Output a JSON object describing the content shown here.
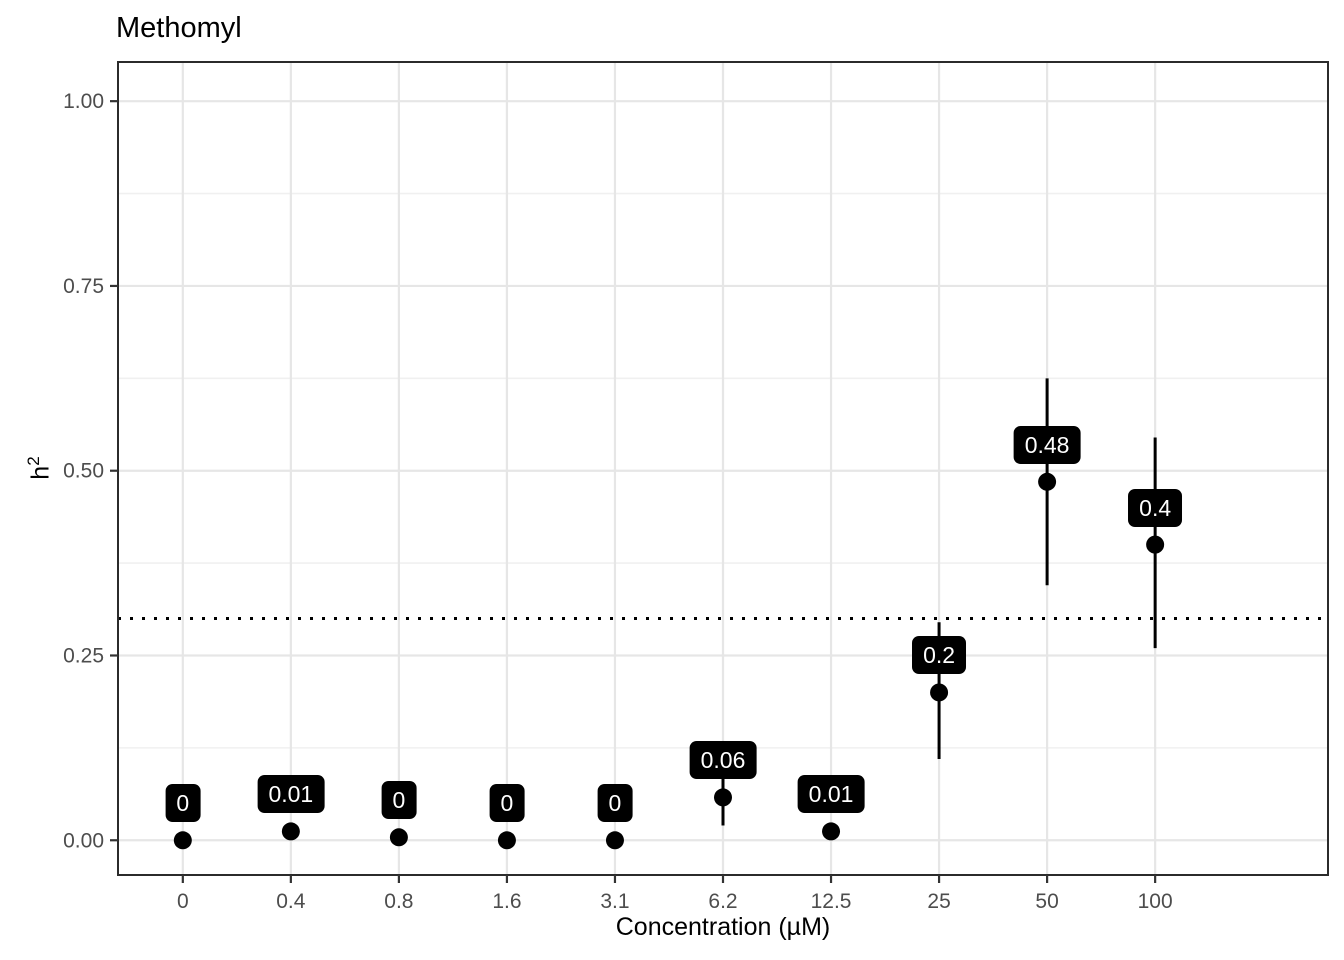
{
  "title": "Methomyl",
  "chart_data": {
    "type": "scatter",
    "title": "Methomyl",
    "xlabel": "Concentration (µM)",
    "ylabel": "h²",
    "ylabel_base": "h",
    "ylabel_exponent": "2",
    "x_categories": [
      "0",
      "0.4",
      "0.8",
      "1.6",
      "3.1",
      "6.2",
      "12.5",
      "25",
      "50",
      "100"
    ],
    "y_tick_labels": [
      "0.00",
      "0.25",
      "0.50",
      "0.75",
      "1.00"
    ],
    "y_tick_values": [
      0,
      0.25,
      0.5,
      0.75,
      1.0
    ],
    "y_minor_tick_values": [
      0.125,
      0.375,
      0.625,
      0.875
    ],
    "ylim": [
      -0.047,
      1.053
    ],
    "grid": "on",
    "legend": "none",
    "points": [
      {
        "x": "0",
        "y": 0.0,
        "label": "0",
        "ymin": null,
        "ymax": null
      },
      {
        "x": "0.4",
        "y": 0.012,
        "label": "0.01",
        "ymin": null,
        "ymax": null
      },
      {
        "x": "0.8",
        "y": 0.004,
        "label": "0",
        "ymin": null,
        "ymax": null
      },
      {
        "x": "1.6",
        "y": 0.0,
        "label": "0",
        "ymin": null,
        "ymax": null
      },
      {
        "x": "3.1",
        "y": 0.0,
        "label": "0",
        "ymin": null,
        "ymax": null
      },
      {
        "x": "6.2",
        "y": 0.058,
        "label": "0.06",
        "ymin": 0.02,
        "ymax": 0.09
      },
      {
        "x": "12.5",
        "y": 0.012,
        "label": "0.01",
        "ymin": null,
        "ymax": null
      },
      {
        "x": "25",
        "y": 0.2,
        "label": "0.2",
        "ymin": 0.11,
        "ymax": 0.295
      },
      {
        "x": "50",
        "y": 0.485,
        "label": "0.48",
        "ymin": 0.345,
        "ymax": 0.625
      },
      {
        "x": "100",
        "y": 0.4,
        "label": "0.4",
        "ymin": 0.26,
        "ymax": 0.545
      }
    ],
    "reference_line": {
      "y": 0.3,
      "style": "dotted",
      "color": "#000000"
    },
    "colors": {
      "point": "#000000",
      "error_bar": "#000000",
      "label_bg": "#000000",
      "label_text": "#ffffff",
      "grid_major": "#E6E6E6",
      "grid_minor": "#F0F0F0",
      "panel_border": "#2B2B2B",
      "tick_mark": "#333333",
      "tick_text": "#4D4D4D",
      "title_text": "#000000"
    }
  }
}
